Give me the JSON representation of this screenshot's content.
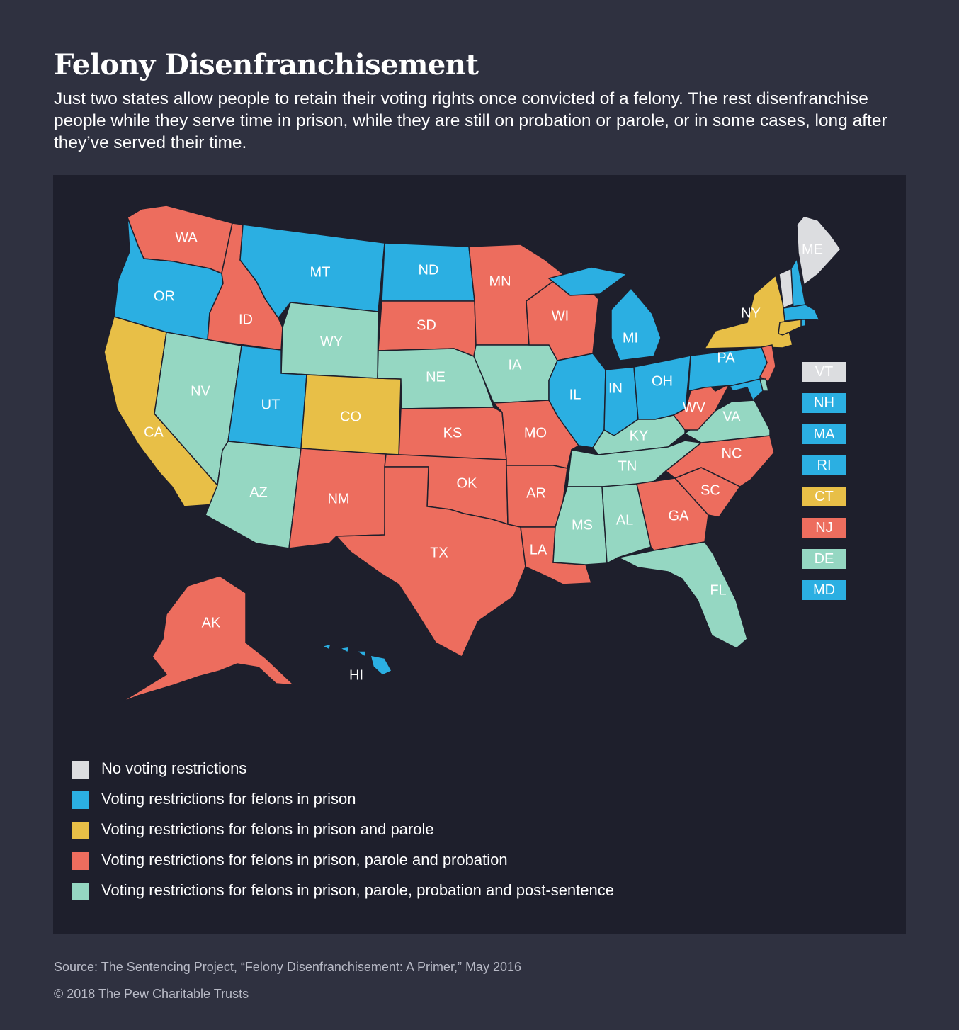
{
  "title": "Felony Disenfranchisement",
  "subtitle": "Just two states allow people to retain their voting rights once convicted of a felony. The rest disenfranchise people while they serve time in prison, while they are still on probation or parole, or in some cases, long after they’ve served their time.",
  "colors": {
    "none": "#dcdde0",
    "prison": "#2bafe2",
    "parole": "#e8bf47",
    "probation": "#ed6d5e",
    "post": "#95d7c2",
    "background": "#2f3140",
    "panel": "#1e1f2c"
  },
  "categories": {
    "none": "No voting restrictions",
    "prison": "Voting restrictions for felons in prison",
    "parole": "Voting restrictions for felons in prison and parole",
    "probation": "Voting restrictions for felons in prison, parole and probation",
    "post": "Voting restrictions for felons in prison, parole, probation and post-sentence"
  },
  "legend": [
    {
      "key": "none",
      "label": "No voting restrictions"
    },
    {
      "key": "prison",
      "label": "Voting restrictions for felons in prison"
    },
    {
      "key": "parole",
      "label": "Voting restrictions for felons in prison and parole"
    },
    {
      "key": "probation",
      "label": "Voting restrictions for felons in prison, parole and probation"
    },
    {
      "key": "post",
      "label": "Voting restrictions for felons in prison, parole, probation and post-sentence"
    }
  ],
  "states": [
    {
      "code": "WA",
      "category": "probation"
    },
    {
      "code": "OR",
      "category": "prison"
    },
    {
      "code": "CA",
      "category": "parole"
    },
    {
      "code": "ID",
      "category": "probation"
    },
    {
      "code": "NV",
      "category": "post"
    },
    {
      "code": "MT",
      "category": "prison"
    },
    {
      "code": "WY",
      "category": "post"
    },
    {
      "code": "UT",
      "category": "prison"
    },
    {
      "code": "CO",
      "category": "parole"
    },
    {
      "code": "AZ",
      "category": "post"
    },
    {
      "code": "NM",
      "category": "probation"
    },
    {
      "code": "ND",
      "category": "prison"
    },
    {
      "code": "SD",
      "category": "probation"
    },
    {
      "code": "NE",
      "category": "post"
    },
    {
      "code": "KS",
      "category": "probation"
    },
    {
      "code": "OK",
      "category": "probation"
    },
    {
      "code": "TX",
      "category": "probation"
    },
    {
      "code": "MN",
      "category": "probation"
    },
    {
      "code": "IA",
      "category": "post"
    },
    {
      "code": "MO",
      "category": "probation"
    },
    {
      "code": "AR",
      "category": "probation"
    },
    {
      "code": "LA",
      "category": "probation"
    },
    {
      "code": "WI",
      "category": "probation"
    },
    {
      "code": "IL",
      "category": "prison"
    },
    {
      "code": "MI",
      "category": "prison"
    },
    {
      "code": "IN",
      "category": "prison"
    },
    {
      "code": "OH",
      "category": "prison"
    },
    {
      "code": "KY",
      "category": "post"
    },
    {
      "code": "TN",
      "category": "post"
    },
    {
      "code": "MS",
      "category": "post"
    },
    {
      "code": "AL",
      "category": "post"
    },
    {
      "code": "GA",
      "category": "probation"
    },
    {
      "code": "FL",
      "category": "post"
    },
    {
      "code": "SC",
      "category": "probation"
    },
    {
      "code": "NC",
      "category": "probation"
    },
    {
      "code": "VA",
      "category": "post"
    },
    {
      "code": "WV",
      "category": "probation"
    },
    {
      "code": "PA",
      "category": "prison"
    },
    {
      "code": "NY",
      "category": "parole"
    },
    {
      "code": "ME",
      "category": "none"
    },
    {
      "code": "AK",
      "category": "probation"
    },
    {
      "code": "HI",
      "category": "prison"
    }
  ],
  "small_states": [
    {
      "code": "VT",
      "category": "none"
    },
    {
      "code": "NH",
      "category": "prison"
    },
    {
      "code": "MA",
      "category": "prison"
    },
    {
      "code": "RI",
      "category": "prison"
    },
    {
      "code": "CT",
      "category": "parole"
    },
    {
      "code": "NJ",
      "category": "probation"
    },
    {
      "code": "DE",
      "category": "post"
    },
    {
      "code": "MD",
      "category": "prison"
    }
  ],
  "source": "Source: The Sentencing Project, “Felony Disenfranchisement: A Primer,” May 2016",
  "copyright": "© 2018 The Pew Charitable Trusts"
}
